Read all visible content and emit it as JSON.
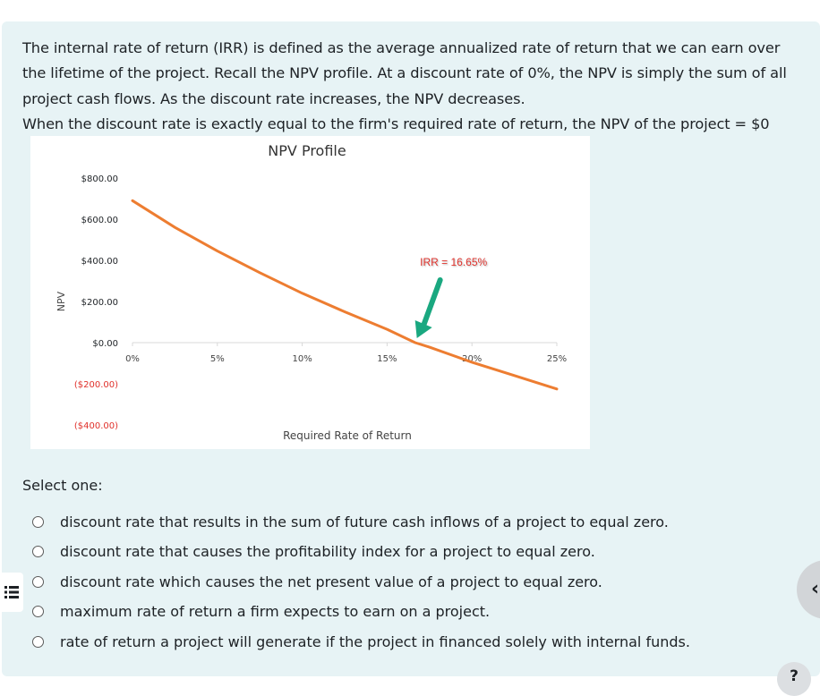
{
  "question": {
    "paragraph_1": "The internal rate of return (IRR) is defined as the average annualized rate of return that we can earn over the lifetime of the project. Recall the NPV profile. At a discount rate of 0%, the NPV is simply the sum of all project cash flows. As the discount rate increases, the NPV decreases.",
    "paragraph_2": "When the discount rate is exactly equal to the firm's required rate of return, the NPV of the project = $0"
  },
  "chart_data": {
    "type": "line",
    "title": "NPV Profile",
    "xlabel": "Required Rate of Return",
    "ylabel": "NPV",
    "xlim": [
      0,
      25
    ],
    "ylim": [
      -400,
      800
    ],
    "x_ticks": [
      "0%",
      "5%",
      "10%",
      "15%",
      "20%",
      "25%"
    ],
    "y_ticks": [
      {
        "label": "$800.00",
        "value": 800,
        "color": "#1d2125"
      },
      {
        "label": "$600.00",
        "value": 600,
        "color": "#1d2125"
      },
      {
        "label": "$400.00",
        "value": 400,
        "color": "#1d2125"
      },
      {
        "label": "$200.00",
        "value": 200,
        "color": "#1d2125"
      },
      {
        "label": "$0.00",
        "value": 0,
        "color": "#1d2125"
      },
      {
        "label": "($200.00)",
        "value": -200,
        "color": "#e0302a"
      },
      {
        "label": "($400.00)",
        "value": -400,
        "color": "#e0302a"
      }
    ],
    "series": [
      {
        "color": "#ed7d31",
        "x": [
          0,
          2.5,
          5,
          7.5,
          10,
          12.5,
          15,
          16.65,
          17.5,
          20,
          22.5,
          25
        ],
        "y": [
          690,
          560,
          445,
          340,
          240,
          150,
          65,
          0,
          -22,
          -95,
          -160,
          -225
        ]
      }
    ],
    "annotation": {
      "text": "IRR = 16.65%",
      "x": 16.65,
      "y": 0,
      "color": "#e0302a",
      "arrow_color": "#1aa880"
    },
    "grid": false
  },
  "prompt": "Select one:",
  "options": [
    {
      "label": "discount rate that results in the sum of future cash inflows of a project to equal zero."
    },
    {
      "label": "discount rate that causes the profitability index for a project to equal zero."
    },
    {
      "label": "discount rate which causes the net present value of a project to equal zero."
    },
    {
      "label": "maximum rate of return a firm expects to earn on a project."
    },
    {
      "label": "rate of return a project will generate if the project in financed solely with internal funds."
    }
  ],
  "help": {
    "label": "?"
  },
  "drawer": {
    "label": "‹"
  },
  "icons": {
    "menu": "menu-icon",
    "chevron": "chevron-left-icon"
  }
}
